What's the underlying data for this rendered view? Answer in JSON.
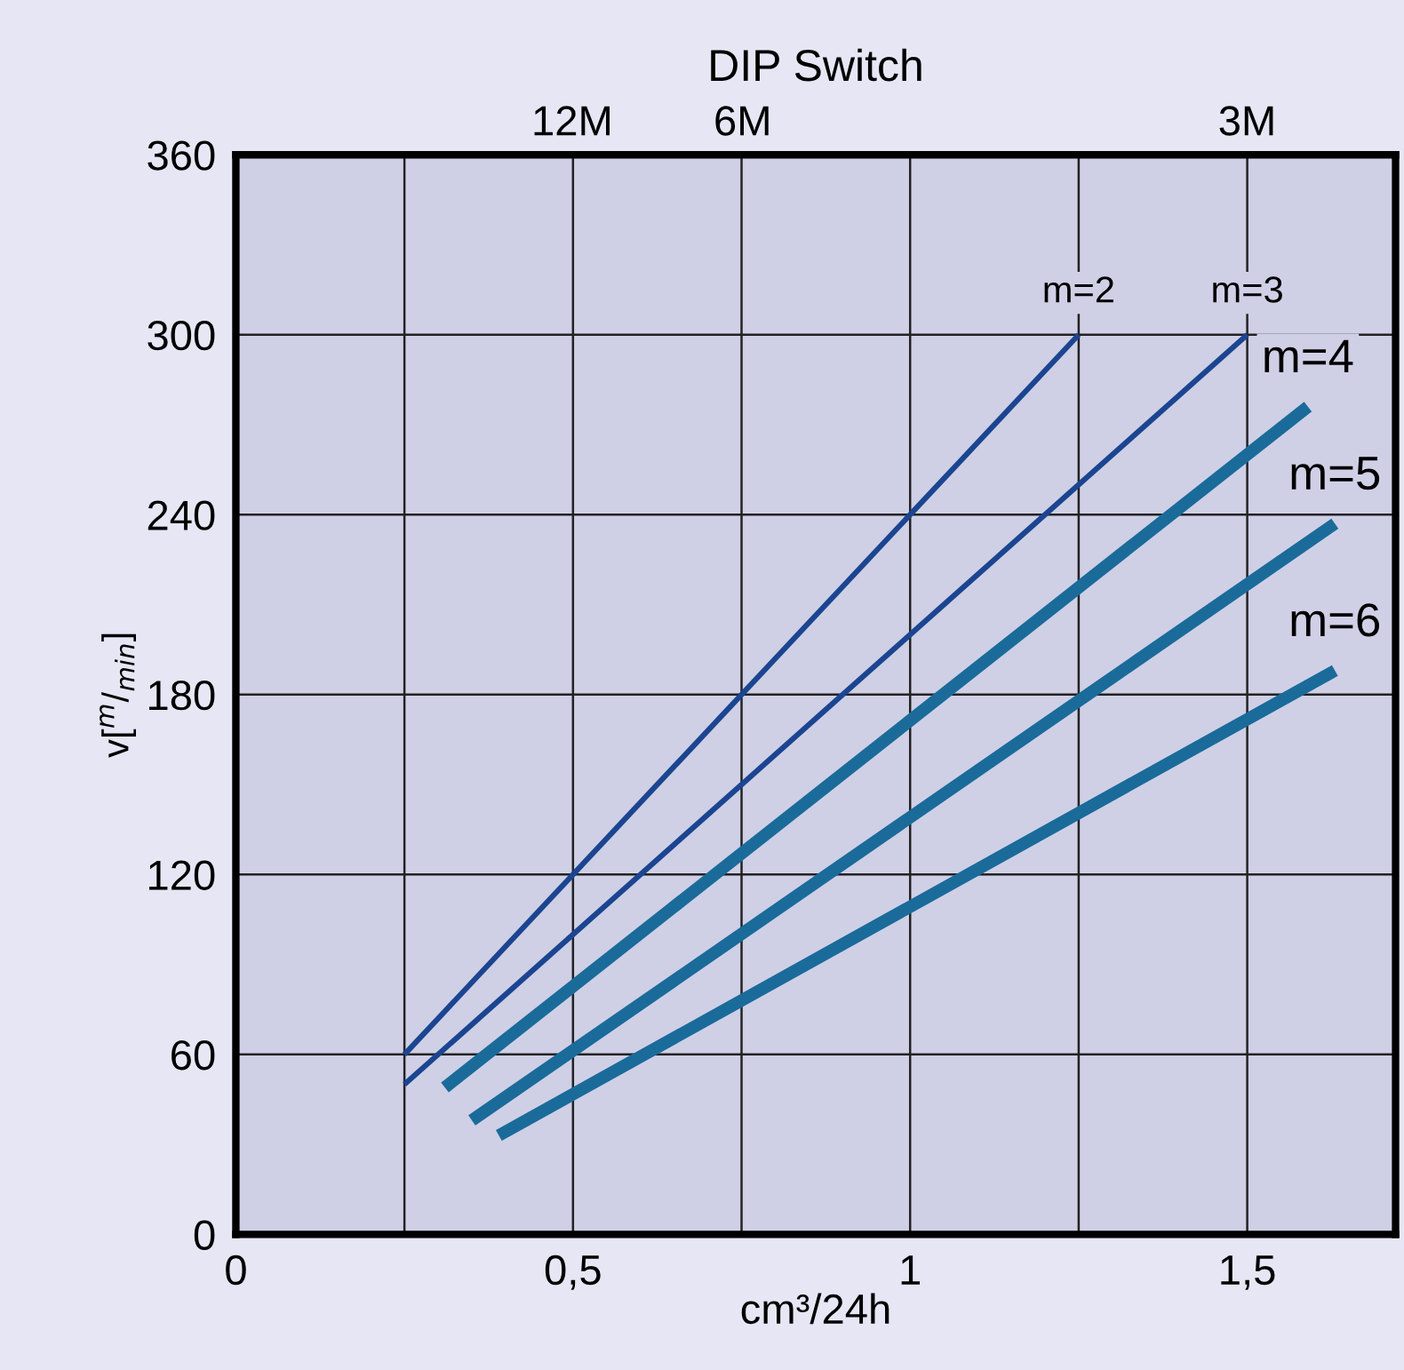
{
  "chart_data": {
    "type": "line",
    "title": "DIP Switch",
    "xlabel": "cm³/24h",
    "ylabel": "v[$^{m}$/$_{min}$]",
    "xlim": [
      0,
      1.72
    ],
    "ylim": [
      0,
      360
    ],
    "xticks": [
      0,
      {
        "value": 0.25,
        "label": null
      },
      {
        "value": 0.5,
        "label": "0,5"
      },
      {
        "value": 0.75,
        "label": null
      },
      1,
      {
        "value": 1.25,
        "label": null
      },
      {
        "value": 1.5,
        "label": "1,5"
      }
    ],
    "yticks": [
      0,
      60,
      120,
      180,
      240,
      300,
      360
    ],
    "annotations": [
      "12M",
      "6M",
      "3M"
    ],
    "grid": true,
    "legend": false,
    "marker": "none",
    "line_style": "solid",
    "series": [
      {
        "name": "m=2",
        "color": "#1b4590",
        "x": [
          0.25,
          1.25
        ],
        "values": [
          60,
          300
        ]
      },
      {
        "name": "m=3",
        "color": "#1b4590",
        "x": [
          0.25,
          1.5
        ],
        "values": [
          50,
          300
        ]
      },
      {
        "name": "m=4",
        "color": "#1a6b9a",
        "x": [
          0.31,
          1.59
        ],
        "values": [
          49,
          276
        ]
      },
      {
        "name": "m=5",
        "color": "#1a6b9a",
        "x": [
          0.35,
          1.63
        ],
        "values": [
          38,
          237
        ]
      },
      {
        "name": "m=6",
        "color": "#1a6b9a",
        "x": [
          0.39,
          1.63
        ],
        "values": [
          33,
          188
        ]
      }
    ]
  }
}
